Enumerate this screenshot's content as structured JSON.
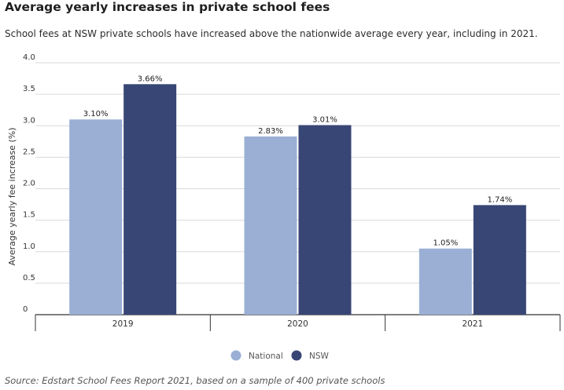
{
  "header": {
    "title": "Average yearly increases in private school fees",
    "subtitle": "School fees at NSW private schools have increased above the nationwide average every year, including in 2021."
  },
  "footer": {
    "source": "Source: Edstart School Fees Report 2021, based on a sample of 400 private schools"
  },
  "colors": {
    "national": "#9bafd5",
    "nsw": "#384675",
    "grid": "#d9d9d9",
    "axis": "#333333"
  },
  "chart_data": {
    "type": "bar",
    "title": "Average yearly increases in private school fees",
    "xlabel": "",
    "ylabel": "Average yearly fee increase (%)",
    "ylim": [
      0,
      4.0
    ],
    "yticks": [
      0,
      0.5,
      1.0,
      1.5,
      2.0,
      2.5,
      3.0,
      3.5,
      4.0
    ],
    "ytick_labels": [
      "0",
      "0.5",
      "1.0",
      "1.5",
      "2.0",
      "2.5",
      "3.0",
      "3.5",
      "4.0"
    ],
    "categories": [
      "2019",
      "2020",
      "2021"
    ],
    "series": [
      {
        "name": "National",
        "values": [
          3.1,
          2.83,
          1.05
        ],
        "labels": [
          "3.10%",
          "2.83%",
          "1.05%"
        ]
      },
      {
        "name": "NSW",
        "values": [
          3.66,
          3.01,
          1.74
        ],
        "labels": [
          "3.66%",
          "3.01%",
          "1.74%"
        ]
      }
    ],
    "legend_position": "bottom-center",
    "grid": true
  }
}
